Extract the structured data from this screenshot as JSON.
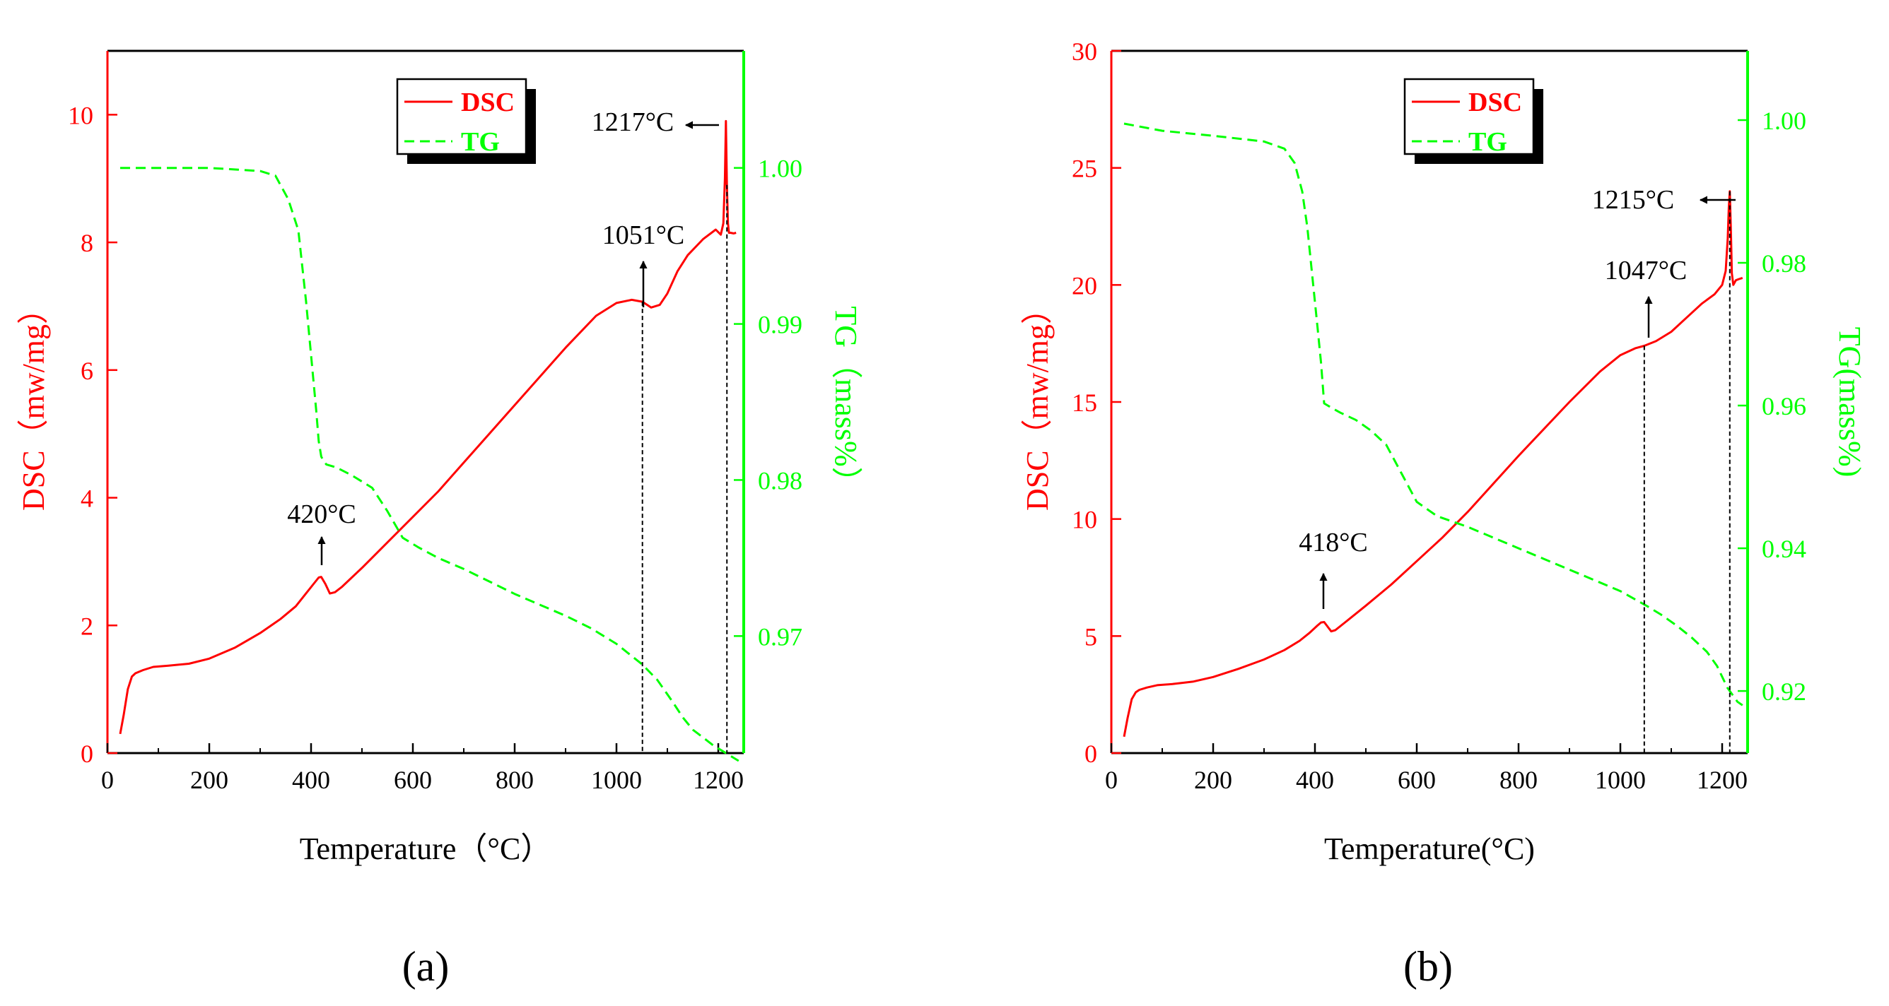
{
  "colors": {
    "dsc": "#ff0000",
    "tg": "#00ff00",
    "axis": "#000000",
    "marker": "#000000"
  },
  "chart_data": [
    {
      "type": "line",
      "panel_label": "(a)",
      "xlabel": "Temperature（°C）",
      "ylabel_left": "DSC（mw/mg）",
      "ylabel_right": "TG（mass%）",
      "xlim": [
        0,
        1250
      ],
      "ylim_left": [
        0,
        11
      ],
      "ylim_right": [
        0.9625,
        1.0075
      ],
      "xticks": [
        0,
        200,
        400,
        600,
        800,
        1000,
        1200
      ],
      "yticks_left": [
        0,
        2,
        4,
        6,
        8,
        10
      ],
      "yticks_right": [
        0.97,
        0.98,
        0.99,
        1.0
      ],
      "yticklabels_right": [
        "0.97",
        "0.98",
        "0.99",
        "1.00"
      ],
      "legend": {
        "position": "top-center",
        "entries": [
          {
            "label": "DSC",
            "series": "DSC"
          },
          {
            "label": "TG",
            "series": "TG"
          }
        ]
      },
      "series": [
        {
          "name": "DSC",
          "axis": "left",
          "style": "solid",
          "x": [
            25,
            32,
            40,
            48,
            55,
            70,
            90,
            120,
            160,
            200,
            250,
            300,
            340,
            370,
            390,
            405,
            415,
            420,
            428,
            437,
            447,
            460,
            500,
            550,
            600,
            650,
            700,
            800,
            900,
            960,
            1000,
            1030,
            1051,
            1068,
            1085,
            1100,
            1120,
            1140,
            1170,
            1195,
            1205,
            1210,
            1213,
            1215,
            1217,
            1219,
            1221,
            1224,
            1230,
            1235
          ],
          "y": [
            0.3,
            0.6,
            1.0,
            1.2,
            1.25,
            1.3,
            1.35,
            1.37,
            1.4,
            1.48,
            1.65,
            1.88,
            2.1,
            2.3,
            2.5,
            2.65,
            2.75,
            2.76,
            2.65,
            2.5,
            2.52,
            2.6,
            2.9,
            3.3,
            3.7,
            4.1,
            4.55,
            5.45,
            6.35,
            6.85,
            7.05,
            7.1,
            7.07,
            6.98,
            7.02,
            7.2,
            7.55,
            7.8,
            8.05,
            8.2,
            8.12,
            8.3,
            9.0,
            9.9,
            8.9,
            8.3,
            8.15,
            8.15,
            8.14,
            8.15
          ]
        },
        {
          "name": "TG",
          "axis": "right",
          "style": "dashed",
          "x": [
            25,
            100,
            200,
            300,
            330,
            355,
            375,
            390,
            400,
            410,
            415,
            420,
            425,
            430,
            450,
            480,
            520,
            550,
            580,
            610,
            650,
            700,
            750,
            800,
            850,
            900,
            950,
            1000,
            1050,
            1080,
            1110,
            1130,
            1150,
            1170,
            1190,
            1210,
            1230,
            1240
          ],
          "y": [
            1.0,
            1.0,
            1.0,
            0.9998,
            0.9995,
            0.998,
            0.996,
            0.9915,
            0.988,
            0.9845,
            0.9825,
            0.9815,
            0.9812,
            0.981,
            0.9808,
            0.9803,
            0.9795,
            0.978,
            0.9763,
            0.9757,
            0.975,
            0.9743,
            0.9735,
            0.9727,
            0.972,
            0.9713,
            0.9705,
            0.9695,
            0.9682,
            0.9672,
            0.9658,
            0.9648,
            0.964,
            0.9635,
            0.963,
            0.9626,
            0.9622,
            0.962
          ]
        }
      ],
      "annotations": [
        {
          "text": "420°C",
          "x": 420,
          "style": "arrow-up"
        },
        {
          "text": "1051°C",
          "x": 1051,
          "style": "arrow-up-dashed-drop"
        },
        {
          "text": "1217°C",
          "x": 1217,
          "style": "arrow-left-dashed-drop"
        }
      ]
    },
    {
      "type": "line",
      "panel_label": "(b)",
      "xlabel": "Temperature(°C)",
      "ylabel_left": "DSC（mw/mg）",
      "ylabel_right": "TG(mass%)",
      "xlim": [
        0,
        1250
      ],
      "ylim_left": [
        0,
        30
      ],
      "ylim_right": [
        0.9113,
        1.0097
      ],
      "xticks": [
        0,
        200,
        400,
        600,
        800,
        1000,
        1200
      ],
      "yticks_left": [
        0,
        5,
        10,
        15,
        20,
        25,
        30
      ],
      "yticks_right": [
        0.92,
        0.94,
        0.96,
        0.98,
        1.0
      ],
      "yticklabels_right": [
        "0.92",
        "0.94",
        "0.96",
        "0.98",
        "1.00"
      ],
      "legend": {
        "position": "top-center",
        "entries": [
          {
            "label": "DSC",
            "series": "DSC"
          },
          {
            "label": "TG",
            "series": "TG"
          }
        ]
      },
      "series": [
        {
          "name": "DSC",
          "axis": "left",
          "style": "solid",
          "x": [
            25,
            32,
            40,
            48,
            55,
            70,
            90,
            120,
            160,
            200,
            250,
            300,
            340,
            370,
            390,
            405,
            412,
            418,
            425,
            432,
            440,
            460,
            500,
            550,
            600,
            650,
            700,
            800,
            900,
            960,
            1000,
            1030,
            1047,
            1070,
            1100,
            1130,
            1160,
            1185,
            1200,
            1207,
            1211,
            1213,
            1215,
            1217,
            1219,
            1222,
            1227,
            1233,
            1240
          ],
          "y": [
            0.7,
            1.5,
            2.3,
            2.6,
            2.7,
            2.8,
            2.9,
            2.95,
            3.05,
            3.25,
            3.6,
            4.0,
            4.4,
            4.8,
            5.15,
            5.45,
            5.58,
            5.6,
            5.4,
            5.2,
            5.25,
            5.6,
            6.3,
            7.2,
            8.2,
            9.2,
            10.3,
            12.7,
            15.0,
            16.3,
            17.0,
            17.3,
            17.4,
            17.6,
            18.0,
            18.6,
            19.2,
            19.6,
            20.0,
            20.6,
            22.0,
            23.3,
            24.0,
            22.5,
            20.5,
            20.0,
            20.2,
            20.25,
            20.3
          ]
        },
        {
          "name": "TG",
          "axis": "right",
          "style": "dashed",
          "x": [
            25,
            100,
            200,
            300,
            340,
            360,
            375,
            385,
            395,
            405,
            412,
            418,
            430,
            450,
            480,
            510,
            540,
            570,
            600,
            640,
            700,
            750,
            800,
            850,
            900,
            950,
            1000,
            1050,
            1080,
            1110,
            1140,
            1170,
            1190,
            1210,
            1220,
            1230,
            1240
          ],
          "y": [
            0.9995,
            0.9985,
            0.9978,
            0.997,
            0.996,
            0.994,
            0.99,
            0.985,
            0.978,
            0.971,
            0.966,
            0.9603,
            0.9598,
            0.959,
            0.958,
            0.9565,
            0.9545,
            0.9505,
            0.9465,
            0.9445,
            0.943,
            0.9415,
            0.94,
            0.9385,
            0.937,
            0.9355,
            0.934,
            0.932,
            0.9307,
            0.9292,
            0.9275,
            0.9255,
            0.9235,
            0.9205,
            0.9195,
            0.9185,
            0.918
          ]
        }
      ],
      "annotations": [
        {
          "text": "418°C",
          "x": 418,
          "style": "arrow-up"
        },
        {
          "text": "1047°C",
          "x": 1047,
          "style": "arrow-up-dashed-drop"
        },
        {
          "text": "1215°C",
          "x": 1215,
          "style": "arrow-left-dashed-drop"
        }
      ]
    }
  ]
}
